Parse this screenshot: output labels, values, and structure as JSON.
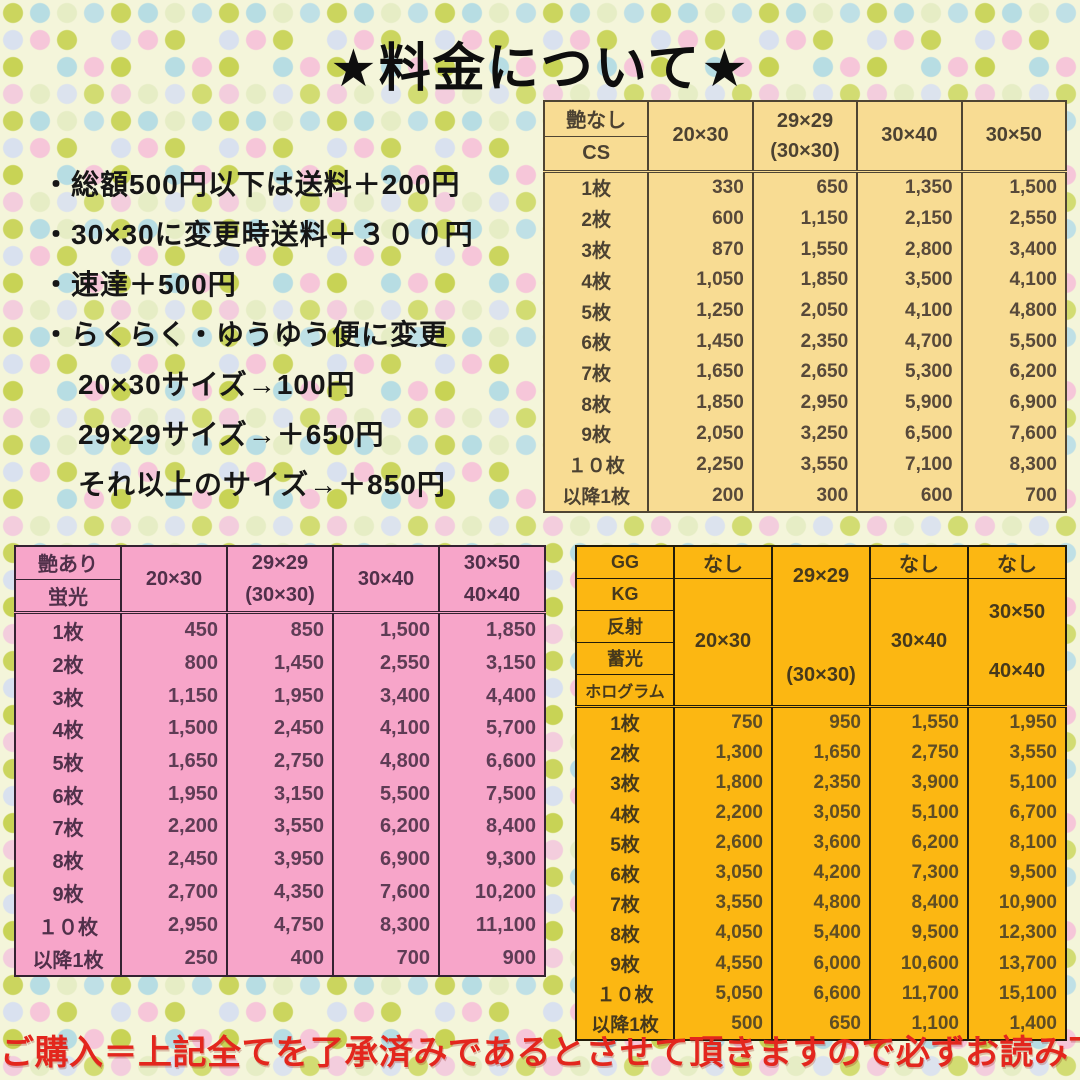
{
  "title": "★料金について★",
  "notes": [
    "・総額500円以下は送料＋200円",
    "・30×30に変更時送料＋３００円",
    "・速達＋500円",
    "・らくらく・ゆうゆう便に変更",
    "20×30サイズ→100円",
    "29×29サイズ→＋650円",
    "それ以上のサイズ→＋850円"
  ],
  "footer": "ご購入＝上記全てを了承済みであるとさせて頂きますので必ずお読み下さい",
  "colors": {
    "background": "#f4f5da",
    "matte_table": "#f8dc93",
    "gloss_table": "#f7a5c9",
    "special_table": "#fcb712",
    "footer_text": "#e3261d",
    "title_text": "#0e0e0e"
  },
  "tables": {
    "matte": {
      "corner": [
        "艶なし",
        "CS"
      ],
      "col_headers": {
        "c1": "20×30",
        "c2a": "29×29",
        "c2b": "(30×30)",
        "c3": "30×40",
        "c4": "30×50"
      },
      "rows": [
        {
          "label": "1枚",
          "values": [
            "330",
            "650",
            "1,350",
            "1,500"
          ]
        },
        {
          "label": "2枚",
          "values": [
            "600",
            "1,150",
            "2,150",
            "2,550"
          ]
        },
        {
          "label": "3枚",
          "values": [
            "870",
            "1,550",
            "2,800",
            "3,400"
          ]
        },
        {
          "label": "4枚",
          "values": [
            "1,050",
            "1,850",
            "3,500",
            "4,100"
          ]
        },
        {
          "label": "5枚",
          "values": [
            "1,250",
            "2,050",
            "4,100",
            "4,800"
          ]
        },
        {
          "label": "6枚",
          "values": [
            "1,450",
            "2,350",
            "4,700",
            "5,500"
          ]
        },
        {
          "label": "7枚",
          "values": [
            "1,650",
            "2,650",
            "5,300",
            "6,200"
          ]
        },
        {
          "label": "8枚",
          "values": [
            "1,850",
            "2,950",
            "5,900",
            "6,900"
          ]
        },
        {
          "label": "9枚",
          "values": [
            "2,050",
            "3,250",
            "6,500",
            "7,600"
          ]
        },
        {
          "label": "１０枚",
          "values": [
            "2,250",
            "3,550",
            "7,100",
            "8,300"
          ]
        },
        {
          "label": "以降1枚",
          "values": [
            "200",
            "300",
            "600",
            "700"
          ]
        }
      ]
    },
    "gloss": {
      "corner": [
        "艶あり",
        "蛍光"
      ],
      "col_headers": {
        "c1": "20×30",
        "c2a": "29×29",
        "c2b": "(30×30)",
        "c3": "30×40",
        "c4a": "30×50",
        "c4b": "40×40"
      },
      "rows": [
        {
          "label": "1枚",
          "values": [
            "450",
            "850",
            "1,500",
            "1,850"
          ]
        },
        {
          "label": "2枚",
          "values": [
            "800",
            "1,450",
            "2,550",
            "3,150"
          ]
        },
        {
          "label": "3枚",
          "values": [
            "1,150",
            "1,950",
            "3,400",
            "4,400"
          ]
        },
        {
          "label": "4枚",
          "values": [
            "1,500",
            "2,450",
            "4,100",
            "5,700"
          ]
        },
        {
          "label": "5枚",
          "values": [
            "1,650",
            "2,750",
            "4,800",
            "6,600"
          ]
        },
        {
          "label": "6枚",
          "values": [
            "1,950",
            "3,150",
            "5,500",
            "7,500"
          ]
        },
        {
          "label": "7枚",
          "values": [
            "2,200",
            "3,550",
            "6,200",
            "8,400"
          ]
        },
        {
          "label": "8枚",
          "values": [
            "2,450",
            "3,950",
            "6,900",
            "9,300"
          ]
        },
        {
          "label": "9枚",
          "values": [
            "2,700",
            "4,350",
            "7,600",
            "10,200"
          ]
        },
        {
          "label": "１０枚",
          "values": [
            "2,950",
            "4,750",
            "8,300",
            "11,100"
          ]
        },
        {
          "label": "以降1枚",
          "values": [
            "250",
            "400",
            "700",
            "900"
          ]
        }
      ]
    },
    "special": {
      "corner": [
        "GG",
        "KG",
        "反射",
        "蓄光",
        "ホログラム"
      ],
      "none_label": "なし",
      "col_headers": {
        "c1": "20×30",
        "c2a": "29×29",
        "c2b": "(30×30)",
        "c3": "30×40",
        "c4a": "30×50",
        "c4b": "40×40"
      },
      "rows": [
        {
          "label": "1枚",
          "values": [
            "750",
            "950",
            "1,550",
            "1,950"
          ]
        },
        {
          "label": "2枚",
          "values": [
            "1,300",
            "1,650",
            "2,750",
            "3,550"
          ]
        },
        {
          "label": "3枚",
          "values": [
            "1,800",
            "2,350",
            "3,900",
            "5,100"
          ]
        },
        {
          "label": "4枚",
          "values": [
            "2,200",
            "3,050",
            "5,100",
            "6,700"
          ]
        },
        {
          "label": "5枚",
          "values": [
            "2,600",
            "3,600",
            "6,200",
            "8,100"
          ]
        },
        {
          "label": "6枚",
          "values": [
            "3,050",
            "4,200",
            "7,300",
            "9,500"
          ]
        },
        {
          "label": "7枚",
          "values": [
            "3,550",
            "4,800",
            "8,400",
            "10,900"
          ]
        },
        {
          "label": "8枚",
          "values": [
            "4,050",
            "5,400",
            "9,500",
            "12,300"
          ]
        },
        {
          "label": "9枚",
          "values": [
            "4,550",
            "6,000",
            "10,600",
            "13,700"
          ]
        },
        {
          "label": "１０枚",
          "values": [
            "5,050",
            "6,600",
            "11,700",
            "15,100"
          ]
        },
        {
          "label": "以降1枚",
          "values": [
            "500",
            "650",
            "1,100",
            "1,400"
          ]
        }
      ]
    }
  }
}
